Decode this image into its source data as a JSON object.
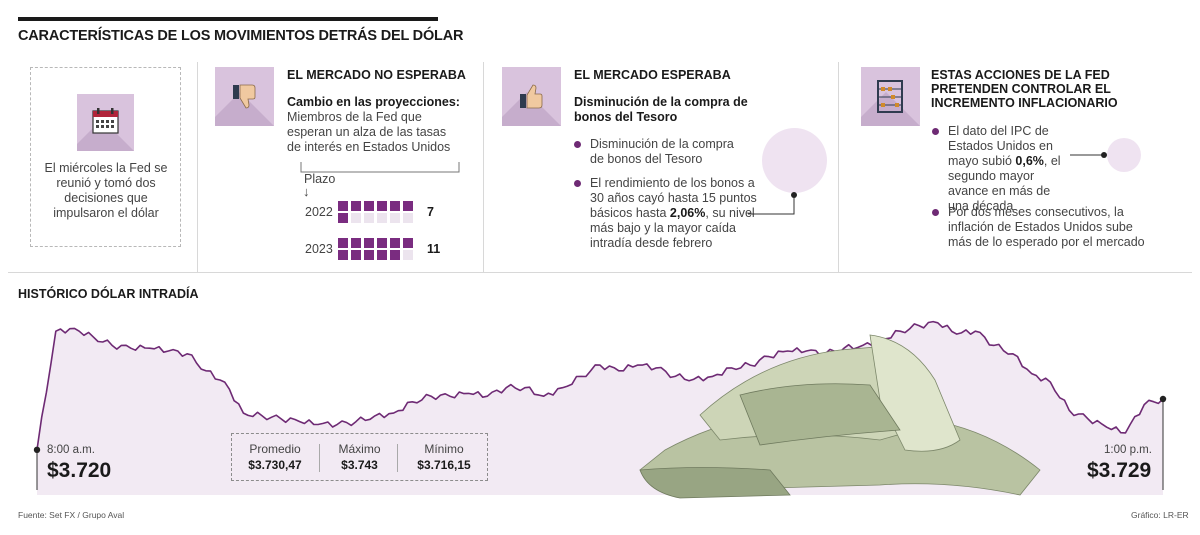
{
  "header": {
    "title": "CARACTERÍSTICAS DE LOS MOVIMIENTOS DETRÁS DEL DÓLAR"
  },
  "intro": {
    "text": "El miércoles la Fed se reunió y tomó dos decisiones que impulsaron el dólar",
    "icon": "calendar-icon"
  },
  "panel_no_esperaba": {
    "title": "EL MERCADO NO ESPERABA",
    "icon": "thumbs-down-icon",
    "subtitle": "Cambio en las proyecciones:",
    "text": "Miembros de la Fed que esperan un alza de las tasas de interés en Estados Unidos",
    "plazo_label": "Plazo",
    "arrow": "↓",
    "rows": [
      {
        "year": "2022",
        "value": 7
      },
      {
        "year": "2023",
        "value": 11
      }
    ],
    "grid_total": 12
  },
  "panel_esperaba": {
    "title": "EL MERCADO ESPERABA",
    "icon": "thumbs-up-icon",
    "subtitle": "Disminución de la compra de bonos del Tesoro",
    "bullet1": "Disminución de la compra de bonos del Tesoro",
    "bullet2_pre": "El rendimiento de los bonos a 30 años cayó hasta 15 puntos básicos hasta ",
    "bullet2_bold": "2,06%",
    "bullet2_post": ", su nivel más bajo y la mayor caída intradía desde febrero"
  },
  "panel_fed": {
    "title": "ESTAS ACCIONES DE LA FED PRETENDEN CONTROLAR EL INCREMENTO INFLACIONARIO",
    "icon": "abacus-icon",
    "bullet1_pre": "El dato del IPC de Estados Unidos en mayo subió ",
    "bullet1_bold": "0,6%",
    "bullet1_post": ", el segundo mayor avance en más de una década",
    "bullet2": "Por dos meses consecutivos, la inflación de Estados Unidos sube más de lo esperado por el mercado"
  },
  "chart_data": {
    "type": "area",
    "title": "HISTÓRICO DÓLAR INTRADÍA",
    "x_start": "8:00 a.m.",
    "x_end": "1:00 p.m.",
    "start_price": "$3.720",
    "end_price": "$3.729",
    "ylim": [
      3712,
      3746
    ],
    "values": [
      3720.0,
      3741.0,
      3741.5,
      3740.0,
      3738.5,
      3738.0,
      3738.0,
      3737.5,
      3737.0,
      3734.0,
      3732.0,
      3726.5,
      3726.0,
      3725.5,
      3725.0,
      3724.5,
      3724.5,
      3725.0,
      3726.0,
      3726.5,
      3728.5,
      3729.5,
      3729.5,
      3730.0,
      3729.5,
      3731.0,
      3731.0,
      3729.5,
      3731.0,
      3733.0,
      3735.0,
      3734.0,
      3735.0,
      3734.5,
      3733.0,
      3732.5,
      3733.0,
      3734.5,
      3735.0,
      3736.5,
      3737.5,
      3737.5,
      3737.0,
      3738.0,
      3738.5,
      3739.5,
      3741.0,
      3742.0,
      3742.5,
      3740.5,
      3741.0,
      3738.5,
      3737.0,
      3733.5,
      3732.0,
      3727.0,
      3725.5,
      3724.0,
      3723.0,
      3728.0,
      3729.0
    ]
  },
  "stats": [
    {
      "label": "Promedio",
      "value": "$3.730,47"
    },
    {
      "label": "Máximo",
      "value": "$3.743"
    },
    {
      "label": "Mínimo",
      "value": "$3.716,15"
    }
  ],
  "footer": {
    "source": "Fuente: Set FX / Grupo Aval",
    "credit": "Gráfico: LR-ER"
  },
  "colors": {
    "accent": "#7a2c80",
    "area_fill": "#f2eaf3",
    "icon_bg": "#d9c3dd",
    "circle": "#efe3f1"
  }
}
